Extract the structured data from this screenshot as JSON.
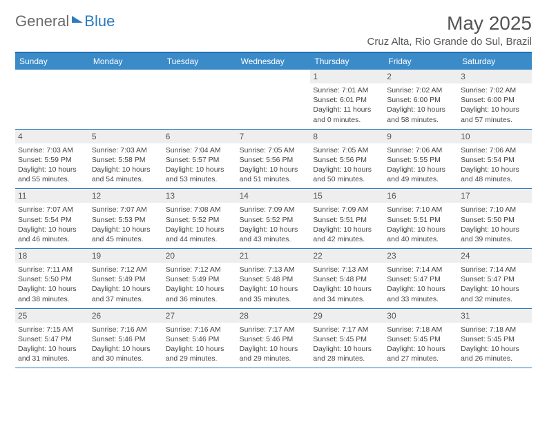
{
  "logo": {
    "part1": "General",
    "part2": "Blue"
  },
  "title": "May 2025",
  "location": "Cruz Alta, Rio Grande do Sul, Brazil",
  "colors": {
    "header_bg": "#3b8bc9",
    "header_border": "#1f6fb2",
    "week_border": "#2a7bbf",
    "daynum_bg": "#eeeeee",
    "text": "#444444",
    "logo_gray": "#6a6a6a",
    "logo_blue": "#2a7bbf"
  },
  "daysOfWeek": [
    "Sunday",
    "Monday",
    "Tuesday",
    "Wednesday",
    "Thursday",
    "Friday",
    "Saturday"
  ],
  "weeks": [
    [
      {
        "n": "",
        "sunrise": "",
        "sunset": "",
        "daylight": ""
      },
      {
        "n": "",
        "sunrise": "",
        "sunset": "",
        "daylight": ""
      },
      {
        "n": "",
        "sunrise": "",
        "sunset": "",
        "daylight": ""
      },
      {
        "n": "",
        "sunrise": "",
        "sunset": "",
        "daylight": ""
      },
      {
        "n": "1",
        "sunrise": "Sunrise: 7:01 AM",
        "sunset": "Sunset: 6:01 PM",
        "daylight": "Daylight: 11 hours and 0 minutes."
      },
      {
        "n": "2",
        "sunrise": "Sunrise: 7:02 AM",
        "sunset": "Sunset: 6:00 PM",
        "daylight": "Daylight: 10 hours and 58 minutes."
      },
      {
        "n": "3",
        "sunrise": "Sunrise: 7:02 AM",
        "sunset": "Sunset: 6:00 PM",
        "daylight": "Daylight: 10 hours and 57 minutes."
      }
    ],
    [
      {
        "n": "4",
        "sunrise": "Sunrise: 7:03 AM",
        "sunset": "Sunset: 5:59 PM",
        "daylight": "Daylight: 10 hours and 55 minutes."
      },
      {
        "n": "5",
        "sunrise": "Sunrise: 7:03 AM",
        "sunset": "Sunset: 5:58 PM",
        "daylight": "Daylight: 10 hours and 54 minutes."
      },
      {
        "n": "6",
        "sunrise": "Sunrise: 7:04 AM",
        "sunset": "Sunset: 5:57 PM",
        "daylight": "Daylight: 10 hours and 53 minutes."
      },
      {
        "n": "7",
        "sunrise": "Sunrise: 7:05 AM",
        "sunset": "Sunset: 5:56 PM",
        "daylight": "Daylight: 10 hours and 51 minutes."
      },
      {
        "n": "8",
        "sunrise": "Sunrise: 7:05 AM",
        "sunset": "Sunset: 5:56 PM",
        "daylight": "Daylight: 10 hours and 50 minutes."
      },
      {
        "n": "9",
        "sunrise": "Sunrise: 7:06 AM",
        "sunset": "Sunset: 5:55 PM",
        "daylight": "Daylight: 10 hours and 49 minutes."
      },
      {
        "n": "10",
        "sunrise": "Sunrise: 7:06 AM",
        "sunset": "Sunset: 5:54 PM",
        "daylight": "Daylight: 10 hours and 48 minutes."
      }
    ],
    [
      {
        "n": "11",
        "sunrise": "Sunrise: 7:07 AM",
        "sunset": "Sunset: 5:54 PM",
        "daylight": "Daylight: 10 hours and 46 minutes."
      },
      {
        "n": "12",
        "sunrise": "Sunrise: 7:07 AM",
        "sunset": "Sunset: 5:53 PM",
        "daylight": "Daylight: 10 hours and 45 minutes."
      },
      {
        "n": "13",
        "sunrise": "Sunrise: 7:08 AM",
        "sunset": "Sunset: 5:52 PM",
        "daylight": "Daylight: 10 hours and 44 minutes."
      },
      {
        "n": "14",
        "sunrise": "Sunrise: 7:09 AM",
        "sunset": "Sunset: 5:52 PM",
        "daylight": "Daylight: 10 hours and 43 minutes."
      },
      {
        "n": "15",
        "sunrise": "Sunrise: 7:09 AM",
        "sunset": "Sunset: 5:51 PM",
        "daylight": "Daylight: 10 hours and 42 minutes."
      },
      {
        "n": "16",
        "sunrise": "Sunrise: 7:10 AM",
        "sunset": "Sunset: 5:51 PM",
        "daylight": "Daylight: 10 hours and 40 minutes."
      },
      {
        "n": "17",
        "sunrise": "Sunrise: 7:10 AM",
        "sunset": "Sunset: 5:50 PM",
        "daylight": "Daylight: 10 hours and 39 minutes."
      }
    ],
    [
      {
        "n": "18",
        "sunrise": "Sunrise: 7:11 AM",
        "sunset": "Sunset: 5:50 PM",
        "daylight": "Daylight: 10 hours and 38 minutes."
      },
      {
        "n": "19",
        "sunrise": "Sunrise: 7:12 AM",
        "sunset": "Sunset: 5:49 PM",
        "daylight": "Daylight: 10 hours and 37 minutes."
      },
      {
        "n": "20",
        "sunrise": "Sunrise: 7:12 AM",
        "sunset": "Sunset: 5:49 PM",
        "daylight": "Daylight: 10 hours and 36 minutes."
      },
      {
        "n": "21",
        "sunrise": "Sunrise: 7:13 AM",
        "sunset": "Sunset: 5:48 PM",
        "daylight": "Daylight: 10 hours and 35 minutes."
      },
      {
        "n": "22",
        "sunrise": "Sunrise: 7:13 AM",
        "sunset": "Sunset: 5:48 PM",
        "daylight": "Daylight: 10 hours and 34 minutes."
      },
      {
        "n": "23",
        "sunrise": "Sunrise: 7:14 AM",
        "sunset": "Sunset: 5:47 PM",
        "daylight": "Daylight: 10 hours and 33 minutes."
      },
      {
        "n": "24",
        "sunrise": "Sunrise: 7:14 AM",
        "sunset": "Sunset: 5:47 PM",
        "daylight": "Daylight: 10 hours and 32 minutes."
      }
    ],
    [
      {
        "n": "25",
        "sunrise": "Sunrise: 7:15 AM",
        "sunset": "Sunset: 5:47 PM",
        "daylight": "Daylight: 10 hours and 31 minutes."
      },
      {
        "n": "26",
        "sunrise": "Sunrise: 7:16 AM",
        "sunset": "Sunset: 5:46 PM",
        "daylight": "Daylight: 10 hours and 30 minutes."
      },
      {
        "n": "27",
        "sunrise": "Sunrise: 7:16 AM",
        "sunset": "Sunset: 5:46 PM",
        "daylight": "Daylight: 10 hours and 29 minutes."
      },
      {
        "n": "28",
        "sunrise": "Sunrise: 7:17 AM",
        "sunset": "Sunset: 5:46 PM",
        "daylight": "Daylight: 10 hours and 29 minutes."
      },
      {
        "n": "29",
        "sunrise": "Sunrise: 7:17 AM",
        "sunset": "Sunset: 5:45 PM",
        "daylight": "Daylight: 10 hours and 28 minutes."
      },
      {
        "n": "30",
        "sunrise": "Sunrise: 7:18 AM",
        "sunset": "Sunset: 5:45 PM",
        "daylight": "Daylight: 10 hours and 27 minutes."
      },
      {
        "n": "31",
        "sunrise": "Sunrise: 7:18 AM",
        "sunset": "Sunset: 5:45 PM",
        "daylight": "Daylight: 10 hours and 26 minutes."
      }
    ]
  ]
}
